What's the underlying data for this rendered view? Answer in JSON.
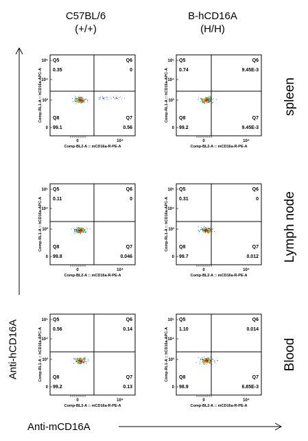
{
  "columns": [
    {
      "line1": "C57BL/6",
      "line2": "(+/+)"
    },
    {
      "line1": "B-hCD16A",
      "line2": "(H/H)"
    }
  ],
  "rows": [
    "spleen",
    "Lymph node",
    "Blood"
  ],
  "y_axis_label": "Anti-hCD16A",
  "x_axis_label": "Anti-mCD16A",
  "plot_y_label": "Comp-RL1-A :: hCD16a-APC-A",
  "plot_x_label": "Comp-BL2-A :: mCD16a-R-PE-A",
  "chart_data": [
    {
      "type": "scatter",
      "panel": "spleen-C57BL/6",
      "quadrants": {
        "Q5": "0.35",
        "Q6": "0",
        "Q7": "0.56",
        "Q8": "99.1"
      }
    },
    {
      "type": "scatter",
      "panel": "spleen-B-hCD16A",
      "quadrants": {
        "Q5": "0.74",
        "Q6": "9.45E-3",
        "Q7": "9.45E-3",
        "Q8": "99.2"
      }
    },
    {
      "type": "scatter",
      "panel": "lymph-C57BL/6",
      "quadrants": {
        "Q5": "0.11",
        "Q6": "0",
        "Q7": "0.046",
        "Q8": "99.8"
      }
    },
    {
      "type": "scatter",
      "panel": "lymph-B-hCD16A",
      "quadrants": {
        "Q5": "0.31",
        "Q6": "0",
        "Q7": "0.012",
        "Q8": "99.7"
      }
    },
    {
      "type": "scatter",
      "panel": "blood-C57BL/6",
      "quadrants": {
        "Q5": "0.56",
        "Q6": "0.14",
        "Q7": "0.13",
        "Q8": "99.2"
      }
    },
    {
      "type": "scatter",
      "panel": "blood-B-hCD16A",
      "quadrants": {
        "Q5": "1.10",
        "Q6": "0.014",
        "Q7": "6.85E-3",
        "Q8": "98.9"
      }
    }
  ]
}
